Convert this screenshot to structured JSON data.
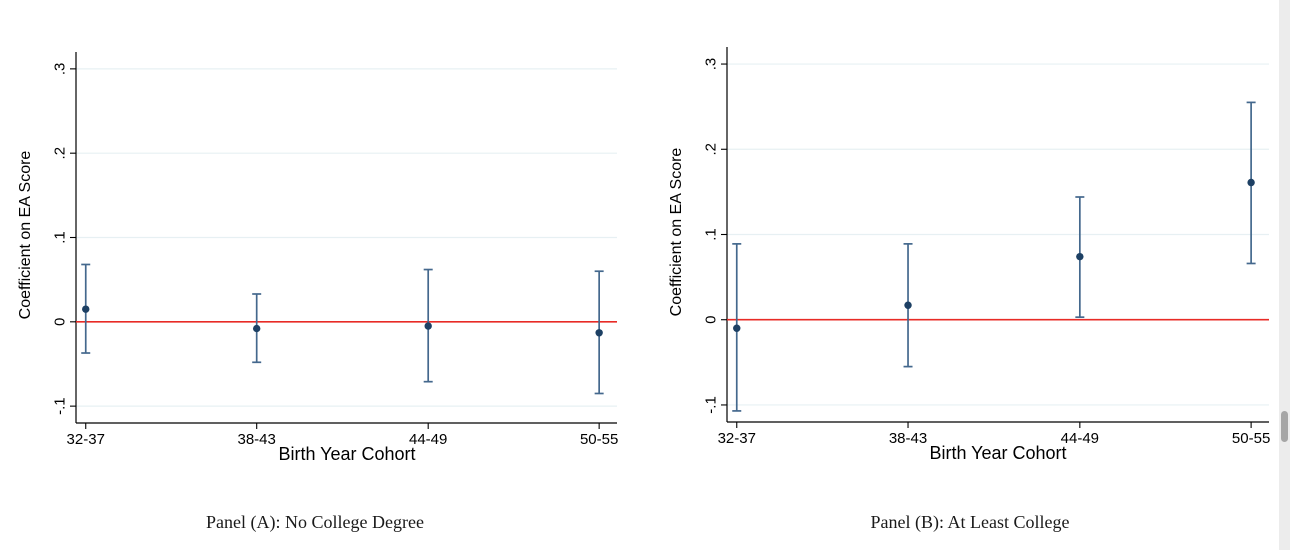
{
  "style": {
    "background": "#ffffff",
    "axis_color": "#000000",
    "grid_color": "#e7f0f3",
    "scrollbar_track_color": "#ececec",
    "scrollbar_thumb_color": "#a6a6a6"
  },
  "scrollbar": {
    "present": true,
    "thumb_position": "lower-middle"
  },
  "chart_data": [
    {
      "type": "scatter",
      "subtype": "coefficient-plot-with-ci",
      "panel": "A",
      "title": "Panel (A): No College Degree",
      "xlabel": "Birth Year Cohort",
      "ylabel": "Coefficient on EA Score",
      "categories": [
        "32-37",
        "38-43",
        "44-49",
        "50-55"
      ],
      "series": [
        {
          "name": "EA score coefficient",
          "values": [
            0.015,
            -0.008,
            -0.005,
            -0.013
          ],
          "ci_low": [
            -0.037,
            -0.048,
            -0.071,
            -0.085
          ],
          "ci_high": [
            0.068,
            0.033,
            0.062,
            0.06
          ]
        }
      ],
      "ylim": [
        -0.12,
        0.32
      ],
      "yticks": [
        {
          "value": -0.1,
          "label": "-.1"
        },
        {
          "value": 0,
          "label": "0"
        },
        {
          "value": 0.1,
          "label": ".1"
        },
        {
          "value": 0.2,
          "label": ".2"
        },
        {
          "value": 0.3,
          "label": ".3"
        }
      ],
      "reference_line": {
        "value": 0,
        "color": "#e82b26"
      },
      "grid": true,
      "legend": "none",
      "marker_color": "#1d4064",
      "line_color": "#44688d"
    },
    {
      "type": "scatter",
      "subtype": "coefficient-plot-with-ci",
      "panel": "B",
      "title": "Panel (B): At Least College",
      "xlabel": "Birth Year Cohort",
      "ylabel": "Coefficient on EA Score",
      "categories": [
        "32-37",
        "38-43",
        "44-49",
        "50-55"
      ],
      "series": [
        {
          "name": "EA score coefficient",
          "values": [
            -0.01,
            0.017,
            0.074,
            0.161
          ],
          "ci_low": [
            -0.107,
            -0.055,
            0.003,
            0.066
          ],
          "ci_high": [
            0.089,
            0.089,
            0.144,
            0.255
          ]
        }
      ],
      "ylim": [
        -0.12,
        0.32
      ],
      "yticks": [
        {
          "value": -0.1,
          "label": "-.1"
        },
        {
          "value": 0,
          "label": "0"
        },
        {
          "value": 0.1,
          "label": ".1"
        },
        {
          "value": 0.2,
          "label": ".2"
        },
        {
          "value": 0.3,
          "label": ".3"
        }
      ],
      "reference_line": {
        "value": 0,
        "color": "#e82b26"
      },
      "grid": true,
      "legend": "none",
      "marker_color": "#1d4064",
      "line_color": "#44688d"
    }
  ]
}
